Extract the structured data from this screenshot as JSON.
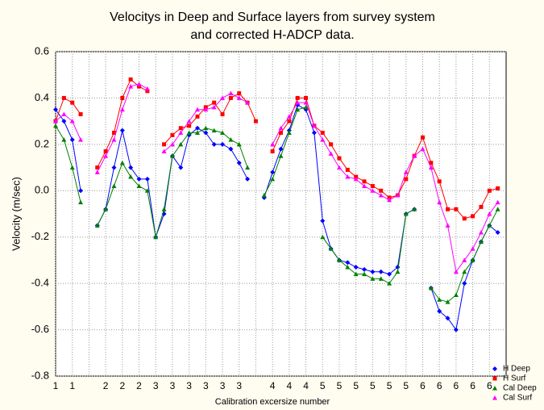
{
  "chart_data": {
    "type": "line",
    "title": [
      "Velocitys in Deep and Surface layers from survey system",
      "and corrected H-ADCP data."
    ],
    "x_label": "Calibration excersize number",
    "y_label": "Velocity (m/sec)",
    "x": [
      0,
      0.5,
      1,
      1.5,
      2,
      2.5,
      3,
      3.5,
      4,
      4.5,
      5,
      5.5,
      6,
      6.5,
      7,
      7.5,
      8,
      8.5,
      9,
      9.5,
      10,
      10.5,
      11,
      11.5,
      12,
      12.5,
      13,
      13.5,
      14,
      14.5,
      15,
      15.5,
      16,
      16.5,
      17,
      17.5,
      18,
      18.5,
      19,
      19.5,
      20,
      20.5,
      21,
      21.5,
      22,
      22.5,
      23,
      23.5,
      24,
      24.5,
      25,
      25.5,
      26,
      26.5
    ],
    "series": [
      {
        "name": "H Deep",
        "color": "#0000ff",
        "marker": "diamond",
        "values": [
          0.35,
          0.3,
          0.22,
          0.0,
          null,
          -0.15,
          -0.08,
          0.1,
          0.26,
          0.1,
          0.05,
          0.05,
          -0.2,
          -0.1,
          0.15,
          0.1,
          0.24,
          0.27,
          0.25,
          0.2,
          0.2,
          0.18,
          0.12,
          0.05,
          null,
          -0.03,
          0.08,
          0.18,
          0.26,
          0.37,
          0.35,
          0.25,
          -0.13,
          -0.25,
          -0.3,
          -0.31,
          -0.33,
          -0.34,
          -0.35,
          -0.35,
          -0.36,
          -0.33,
          -0.1,
          -0.08,
          null,
          -0.42,
          -0.52,
          -0.55,
          -0.6,
          -0.4,
          -0.3,
          -0.22,
          -0.15,
          -0.18
        ]
      },
      {
        "name": "H Surf",
        "color": "#ff0000",
        "marker": "square",
        "values": [
          0.3,
          0.4,
          0.38,
          0.33,
          null,
          0.1,
          0.17,
          0.25,
          0.4,
          0.48,
          0.45,
          0.43,
          null,
          0.2,
          0.24,
          0.27,
          0.28,
          0.32,
          0.36,
          0.38,
          0.33,
          0.4,
          0.42,
          0.38,
          0.3,
          null,
          0.17,
          0.25,
          0.3,
          0.4,
          0.4,
          0.28,
          0.25,
          0.2,
          0.14,
          0.09,
          0.06,
          0.04,
          0.02,
          0.0,
          -0.03,
          -0.02,
          0.05,
          0.15,
          0.23,
          0.12,
          0.04,
          -0.08,
          -0.08,
          -0.12,
          -0.11,
          -0.07,
          0.0,
          0.01
        ]
      },
      {
        "name": "Cal Deep",
        "color": "#008000",
        "marker": "triangle",
        "values": [
          0.28,
          0.22,
          0.1,
          -0.05,
          null,
          -0.15,
          -0.08,
          0.02,
          0.12,
          0.06,
          0.02,
          0.0,
          -0.2,
          -0.08,
          0.15,
          0.2,
          0.25,
          0.25,
          0.27,
          0.26,
          0.25,
          0.22,
          0.2,
          0.1,
          null,
          -0.02,
          0.05,
          0.15,
          0.25,
          0.35,
          0.36,
          null,
          -0.2,
          -0.25,
          -0.3,
          -0.33,
          -0.36,
          -0.36,
          -0.38,
          -0.38,
          -0.4,
          -0.35,
          -0.1,
          -0.08,
          null,
          -0.42,
          -0.47,
          -0.48,
          -0.45,
          -0.35,
          -0.3,
          -0.22,
          -0.15,
          -0.08
        ]
      },
      {
        "name": "Cal Surf",
        "color": "#ff00ff",
        "marker": "triangle",
        "values": [
          0.3,
          0.33,
          0.3,
          0.22,
          null,
          0.08,
          0.15,
          0.22,
          0.35,
          0.45,
          0.46,
          0.44,
          null,
          0.17,
          0.2,
          0.25,
          0.3,
          0.35,
          0.35,
          0.36,
          0.4,
          0.42,
          0.4,
          0.38,
          null,
          null,
          0.2,
          0.27,
          0.32,
          0.38,
          0.38,
          0.28,
          0.22,
          0.16,
          0.1,
          0.06,
          0.05,
          0.02,
          0.0,
          -0.02,
          -0.04,
          -0.02,
          0.08,
          0.15,
          0.18,
          0.1,
          -0.05,
          -0.15,
          -0.35,
          -0.3,
          -0.25,
          -0.18,
          -0.1,
          -0.05
        ]
      }
    ],
    "xlim": [
      0,
      27
    ],
    "xticks": [
      {
        "value": 0,
        "label": "1"
      },
      {
        "value": 1,
        "label": "1"
      },
      {
        "value": 2,
        "label": null
      },
      {
        "value": 3,
        "label": "2"
      },
      {
        "value": 4,
        "label": "2"
      },
      {
        "value": 5,
        "label": "2"
      },
      {
        "value": 6,
        "label": "3"
      },
      {
        "value": 7,
        "label": "3"
      },
      {
        "value": 8,
        "label": "3"
      },
      {
        "value": 9,
        "label": "3"
      },
      {
        "value": 10,
        "label": "3"
      },
      {
        "value": 11,
        "label": "3"
      },
      {
        "value": 12,
        "label": null
      },
      {
        "value": 13,
        "label": "4"
      },
      {
        "value": 14,
        "label": "4"
      },
      {
        "value": 15,
        "label": "4"
      },
      {
        "value": 16,
        "label": "5"
      },
      {
        "value": 17,
        "label": "5"
      },
      {
        "value": 18,
        "label": "5"
      },
      {
        "value": 19,
        "label": "5"
      },
      {
        "value": 20,
        "label": "5"
      },
      {
        "value": 21,
        "label": "5"
      },
      {
        "value": 22,
        "label": "6"
      },
      {
        "value": 23,
        "label": "6"
      },
      {
        "value": 24,
        "label": "6"
      },
      {
        "value": 25,
        "label": "6"
      },
      {
        "value": 26,
        "label": "6"
      }
    ],
    "ylim": [
      -0.8,
      0.6
    ],
    "yticks": [
      -0.8,
      -0.6,
      -0.4,
      -0.2,
      {
        "value": 0,
        "label": "0.0"
      },
      0.2,
      0.4,
      0.6
    ],
    "grid": true,
    "legend": "bottom-right"
  }
}
